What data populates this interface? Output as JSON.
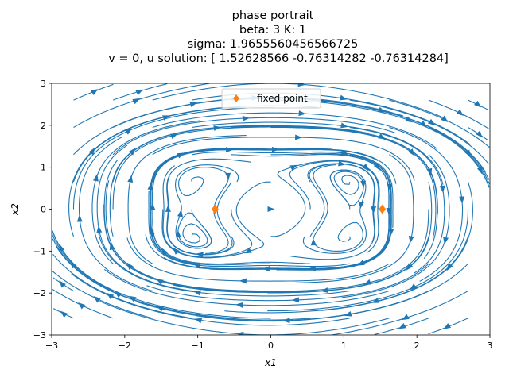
{
  "title_lines": [
    "phase portrait",
    "beta: 3 K: 1",
    "sigma: 1.9655560456566725",
    "v = 0, u solution: [ 1.52628566 -0.76314282 -0.76314284]"
  ],
  "colors": {
    "stream": "#1f77b4",
    "fixed_point": "#ff7f0e"
  },
  "chart_data": {
    "type": "streamplot",
    "xlabel": "x1",
    "ylabel": "x2",
    "xlim": [
      -3,
      3
    ],
    "ylim": [
      -3,
      3
    ],
    "xticks": [
      "-3",
      "-2",
      "-1",
      "0",
      "1",
      "2",
      "3"
    ],
    "yticks": [
      "-3",
      "-2",
      "-1",
      "0",
      "1",
      "2",
      "3"
    ],
    "grid": false,
    "legend": {
      "placement": "upper center",
      "entries": [
        "fixed point"
      ]
    },
    "fixed_points": [
      {
        "x": 1.52628566,
        "y": 0
      },
      {
        "x": -0.76314282,
        "y": 0
      }
    ]
  }
}
